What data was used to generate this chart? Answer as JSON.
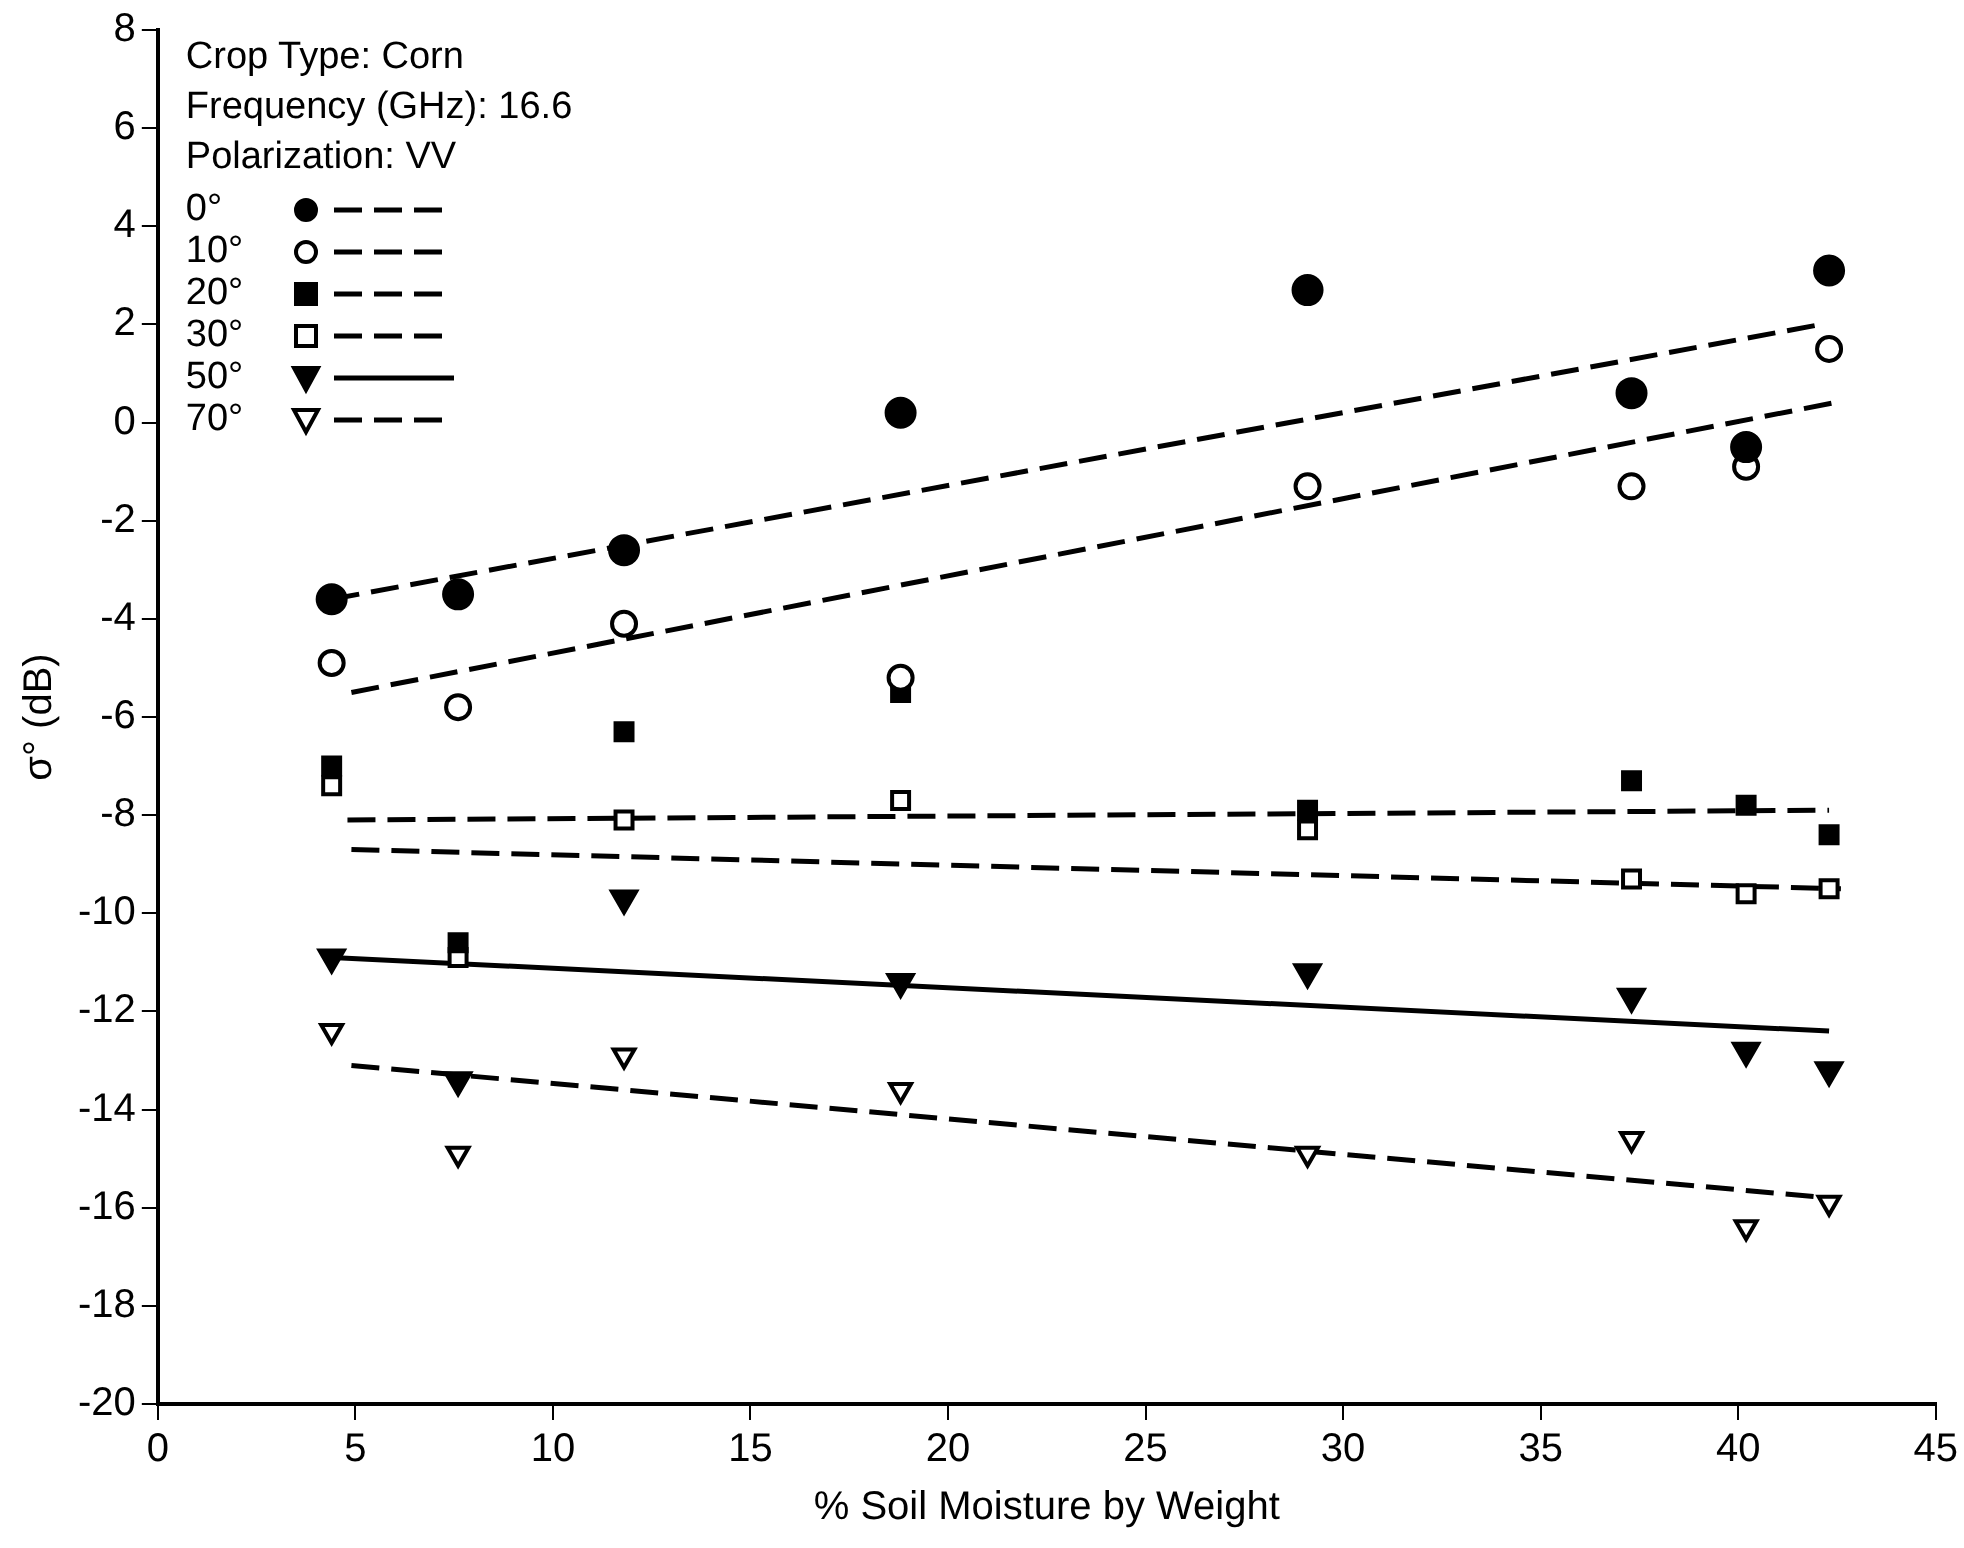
{
  "chart_data": {
    "type": "scatter",
    "xlabel": "% Soil Moisture by Weight",
    "ylabel": "σ° (dB)",
    "annotations": [
      "Crop Type: Corn",
      "Frequency (GHz): 16.6",
      "Polarization: VV"
    ],
    "xlim": [
      0,
      45
    ],
    "xticks": [
      0,
      5,
      10,
      15,
      20,
      25,
      30,
      35,
      40,
      45
    ],
    "ylim": [
      -20,
      8
    ],
    "yticks": [
      -20,
      -18,
      -16,
      -14,
      -12,
      -10,
      -8,
      -6,
      -4,
      -2,
      0,
      2,
      4,
      6,
      8
    ],
    "grid": false,
    "legend": "top left",
    "x": [
      4.4,
      7.6,
      11.8,
      18.8,
      29.1,
      37.3,
      40.2,
      42.3
    ],
    "series": [
      {
        "name": "0°",
        "color": "#000000",
        "marker": "circle",
        "values": [
          -3.6,
          -3.5,
          -2.6,
          0.2,
          2.7,
          0.6,
          -0.5,
          3.1
        ]
      },
      {
        "type": "line",
        "color": "#000000",
        "line_style": "dashed",
        "marker": "none",
        "x": [
          4.4,
          42.1
        ],
        "values": [
          -3.6,
          2.0
        ]
      },
      {
        "name": "10°",
        "color": "#000000",
        "marker": "circle-open",
        "values": [
          -4.9,
          -5.8,
          -4.1,
          -5.2,
          -1.3,
          -1.3,
          -0.9,
          1.5
        ]
      },
      {
        "type": "line",
        "color": "#000000",
        "line_style": "dashed",
        "marker": "none",
        "x": [
          4.9,
          42.4
        ],
        "values": [
          -5.5,
          0.4
        ]
      },
      {
        "name": "20°",
        "color": "#000000",
        "marker": "square",
        "values": [
          -7.0,
          -10.6,
          -6.3,
          -5.5,
          -7.9,
          -7.3,
          -7.8,
          -8.4
        ]
      },
      {
        "type": "line",
        "color": "#000000",
        "line_style": "dashed",
        "marker": "none",
        "x": [
          4.8,
          42.3
        ],
        "values": [
          -8.1,
          -7.9
        ]
      },
      {
        "name": "30°",
        "color": "#000000",
        "marker": "square-open",
        "values": [
          -7.4,
          -10.9,
          -8.1,
          -7.7,
          -8.3,
          -9.3,
          -9.6,
          -9.5
        ]
      },
      {
        "type": "line",
        "color": "#000000",
        "line_style": "dashed",
        "marker": "none",
        "x": [
          4.9,
          42.6
        ],
        "values": [
          -8.7,
          -9.5
        ]
      },
      {
        "name": "50°",
        "color": "#000000",
        "marker": "triangle-down",
        "values": [
          -10.9,
          -13.4,
          -9.7,
          -11.4,
          -11.2,
          -11.7,
          -12.8,
          -13.2
        ]
      },
      {
        "type": "line",
        "color": "#000000",
        "line_style": "solid",
        "marker": "none",
        "x": [
          4.4,
          42.3
        ],
        "values": [
          -10.9,
          -12.4
        ]
      },
      {
        "name": "70°",
        "color": "#000000",
        "marker": "triangle-down-open",
        "values": [
          -12.4,
          -14.9,
          -12.9,
          -13.6,
          -14.9,
          -14.6,
          -16.4,
          -15.9
        ]
      },
      {
        "type": "line",
        "color": "#000000",
        "line_style": "dashed",
        "marker": "none",
        "x": [
          4.9,
          42.3
        ],
        "values": [
          -13.1,
          -15.8
        ]
      }
    ]
  }
}
